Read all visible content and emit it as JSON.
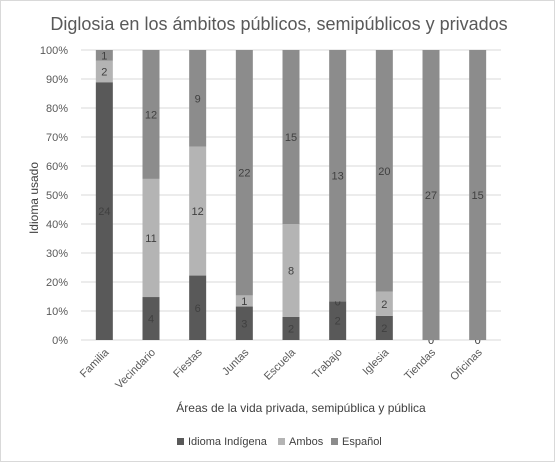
{
  "chart_data": {
    "type": "bar",
    "stacked": "percent",
    "title": "Diglosia en los ámbitos públicos, semipúblicos y privados",
    "xlabel": "Áreas de la vida privada, semipública y pública",
    "ylabel": "Idioma usado",
    "ylim": [
      0,
      100
    ],
    "yticks": [
      "0%",
      "10%",
      "20%",
      "30%",
      "40%",
      "50%",
      "60%",
      "70%",
      "80%",
      "90%",
      "100%"
    ],
    "categories": [
      "Familia",
      "Vecindario",
      "Fiestas",
      "Juntas",
      "Escuela",
      "Trabajo",
      "Iglesia",
      "Tiendas",
      "Oficinas"
    ],
    "series": [
      {
        "name": "Idioma Indígena",
        "values": [
          24,
          4,
          6,
          3,
          2,
          2,
          2,
          0,
          0
        ],
        "color": "#595959"
      },
      {
        "name": "Ambos",
        "values": [
          2,
          11,
          12,
          1,
          8,
          0,
          2,
          0,
          0
        ],
        "color": "#b4b4b4"
      },
      {
        "name": "Español",
        "values": [
          1,
          12,
          9,
          22,
          15,
          13,
          20,
          27,
          15
        ],
        "color": "#8c8c8c"
      }
    ],
    "data_labels": [
      [
        "24",
        "4",
        "6",
        "3",
        "2",
        "2",
        "2",
        "0",
        "0"
      ],
      [
        "2",
        "11",
        "12",
        "1",
        "8",
        "0",
        "2",
        "",
        ""
      ],
      [
        "1",
        "12",
        "9",
        "22",
        "15",
        "13",
        "20",
        "27",
        "15"
      ]
    ],
    "legend_position": "bottom",
    "grid": true
  }
}
